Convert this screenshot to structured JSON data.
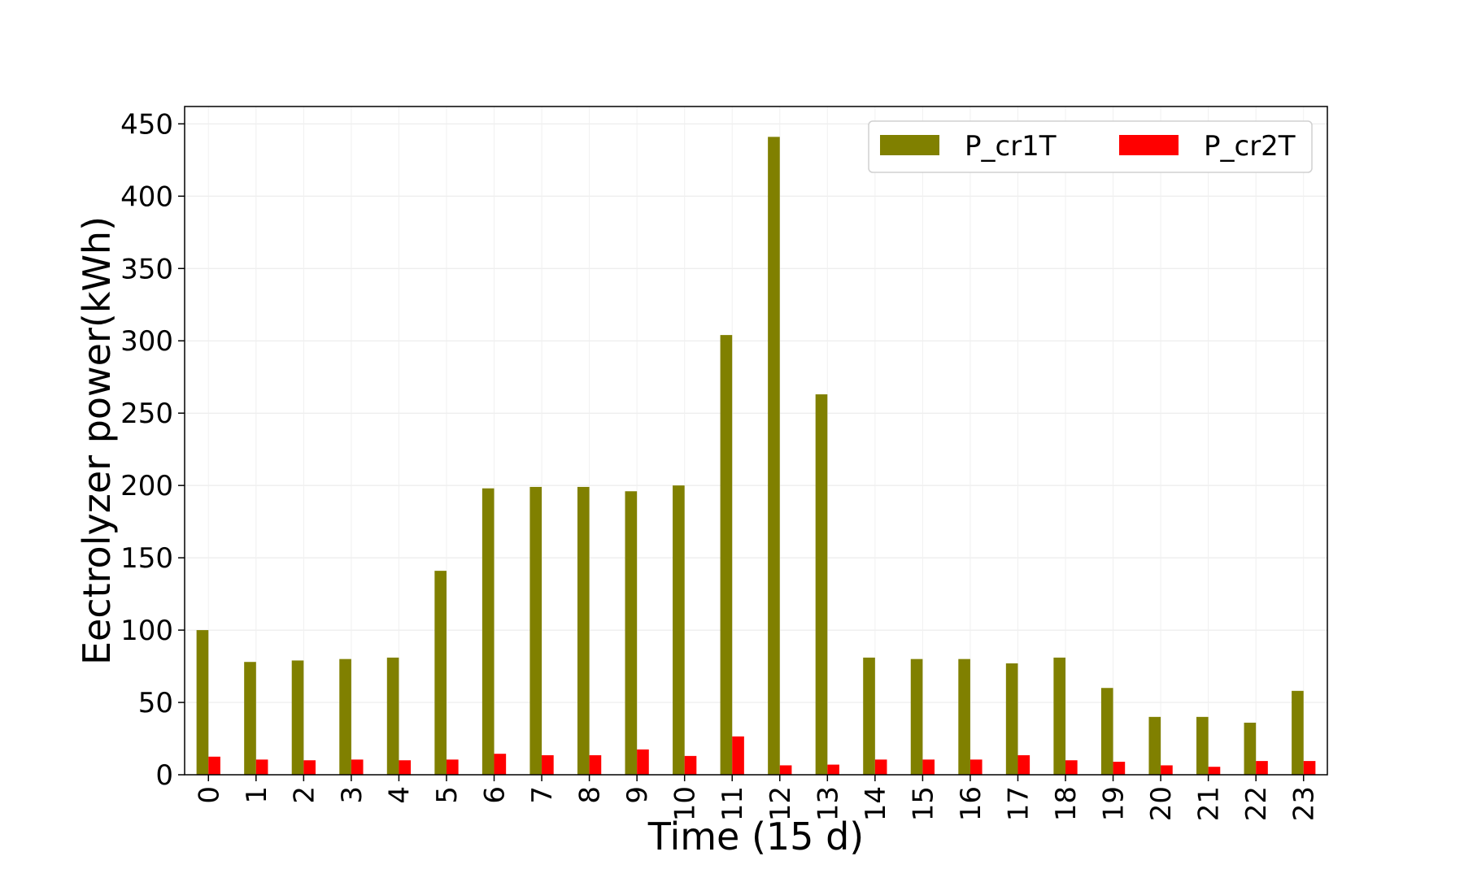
{
  "chart_data": {
    "type": "bar",
    "categories": [
      "0",
      "1",
      "2",
      "3",
      "4",
      "5",
      "6",
      "7",
      "8",
      "9",
      "10",
      "11",
      "12",
      "13",
      "14",
      "15",
      "16",
      "17",
      "18",
      "19",
      "20",
      "21",
      "22",
      "23"
    ],
    "series": [
      {
        "name": "P_cr1T",
        "color": "#808000",
        "values": [
          100,
          78,
          79,
          80,
          81,
          141,
          198,
          199,
          199,
          196,
          200,
          304,
          441,
          263,
          81,
          80,
          80,
          77,
          81,
          60,
          40,
          40,
          36,
          58
        ]
      },
      {
        "name": "P_cr2T",
        "color": "#ff0000",
        "values": [
          12.5,
          10.5,
          10,
          10.5,
          10,
          10.5,
          14.5,
          13.5,
          13.5,
          17.5,
          13,
          26.5,
          6.5,
          7,
          10.5,
          10.5,
          10.5,
          13.5,
          10,
          9,
          6.5,
          5.5,
          9.5,
          9.5
        ]
      }
    ],
    "xlabel": "Time (15 d)",
    "ylabel": "Eectrolyzer power(kWh)",
    "ylim": [
      0,
      462
    ],
    "yticks": [
      0,
      50,
      100,
      150,
      200,
      250,
      300,
      350,
      400,
      450
    ],
    "grid": true,
    "legend": {
      "position": "top-right",
      "columns": 2
    }
  }
}
